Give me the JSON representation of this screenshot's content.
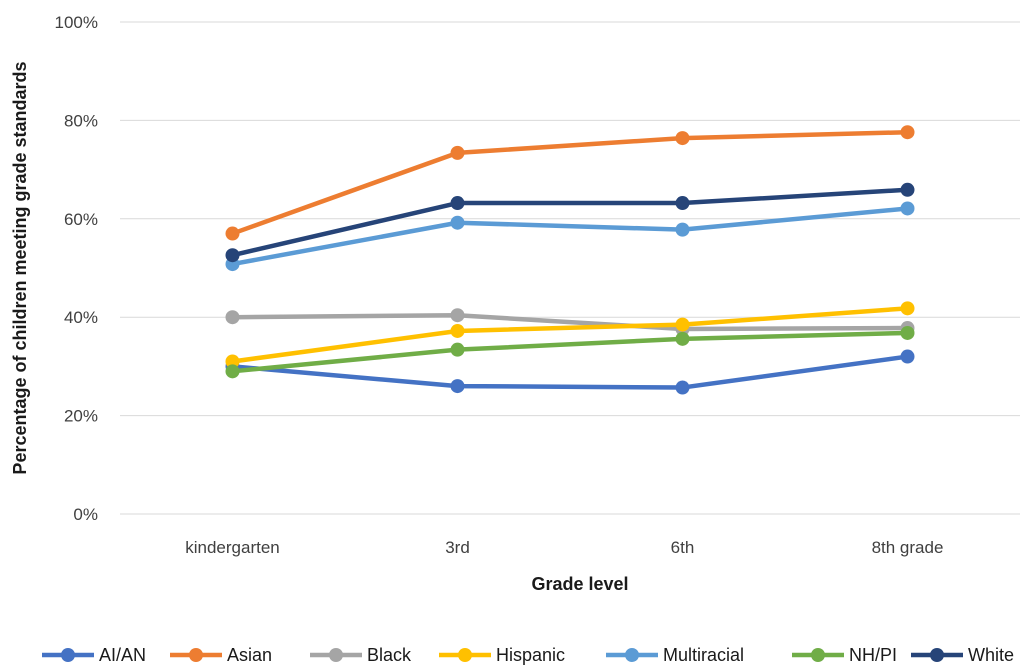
{
  "chart_data": {
    "type": "line",
    "title": "",
    "xlabel": "Grade level",
    "ylabel": "Percentage of children meeting grade standards",
    "categories": [
      "kindergarten",
      "3rd",
      "6th",
      "8th grade"
    ],
    "ylim": [
      0,
      100
    ],
    "yticks": [
      0,
      20,
      40,
      60,
      80,
      100
    ],
    "ytick_labels": [
      "0%",
      "20%",
      "40%",
      "60%",
      "80%",
      "100%"
    ],
    "grid": "horizontal",
    "legend_position": "bottom",
    "series": [
      {
        "name": "AI/AN",
        "color": "#4472c4",
        "values": [
          30,
          26,
          25.7,
          32
        ]
      },
      {
        "name": "Asian",
        "color": "#ed7d31",
        "values": [
          57,
          73.4,
          76.4,
          77.6
        ]
      },
      {
        "name": "Black",
        "color": "#a5a5a5",
        "values": [
          40,
          40.4,
          37.6,
          37.8
        ]
      },
      {
        "name": "Hispanic",
        "color": "#ffc000",
        "values": [
          31,
          37.2,
          38.5,
          41.8
        ]
      },
      {
        "name": "Multiracial",
        "color": "#5b9bd5",
        "values": [
          50.8,
          59.2,
          57.8,
          62.1
        ]
      },
      {
        "name": "NH/PI",
        "color": "#70ad47",
        "values": [
          29,
          33.4,
          35.6,
          36.8
        ]
      },
      {
        "name": "White",
        "color": "#264478",
        "values": [
          52.6,
          63.2,
          63.2,
          65.9
        ]
      }
    ]
  }
}
